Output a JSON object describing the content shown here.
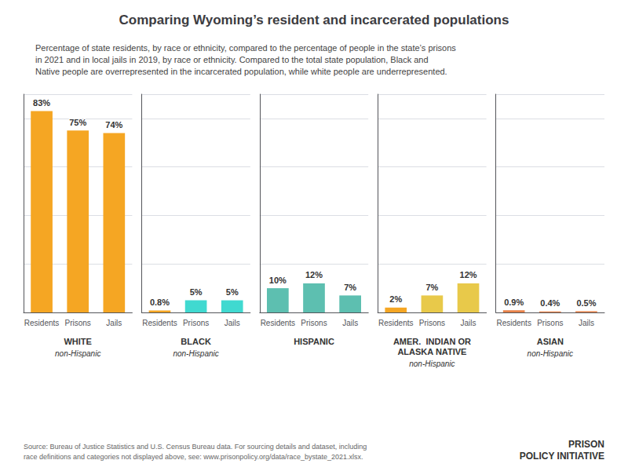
{
  "title": "Comparing Wyoming’s resident and incarcerated populations",
  "subtitle": "Percentage of state residents, by race or ethnicity, compared to the percentage of people in the state’s prisons\nin 2021 and in local jails in 2019, by race or ethnicity. Compared to the total state population, Black and\nNative people are overrepresented in the incarcerated population, while white people are underrepresented.",
  "annotations": [
    "Source: Bureau of Justice Statistics and U.S. Census Bureau data. For sourcing details and dataset, including\nrace definitions and categories not displayed above, see: www.prisonpolicy.org/data/race_bystate_2021.xlsx.",
    "PRISON\nPOLICY INITIATIVE"
  ],
  "chart_data": [
    {
      "type": "bar",
      "title": "WHITE",
      "subtitle": "non-Hispanic",
      "categories": [
        "Residents",
        "Prisons",
        "Jails"
      ],
      "values": [
        83,
        75,
        74
      ],
      "value_labels": [
        "83%",
        "75%",
        "74%"
      ],
      "colors": [
        "#F5A623",
        "#F5A623",
        "#F5A623"
      ],
      "ylim": [
        0,
        90
      ],
      "yticks": [
        0,
        20,
        40,
        60,
        80
      ],
      "grid": true,
      "data_labels": true,
      "tick_labels": "x"
    },
    {
      "type": "bar",
      "title": "BLACK",
      "subtitle": "non-Hispanic",
      "categories": [
        "Residents",
        "Prisons",
        "Jails"
      ],
      "values": [
        0.8,
        5,
        5
      ],
      "value_labels": [
        "0.8%",
        "5%",
        "5%"
      ],
      "colors": [
        "#F5A623",
        "#40D9D0",
        "#40D9D0"
      ],
      "ylim": [
        0,
        90
      ],
      "yticks": [
        0,
        20,
        40,
        60,
        80
      ],
      "grid": true,
      "data_labels": true,
      "tick_labels": "x"
    },
    {
      "type": "bar",
      "title": "HISPANIC",
      "categories": [
        "Residents",
        "Prisons",
        "Jails"
      ],
      "values": [
        10,
        12,
        7
      ],
      "value_labels": [
        "10%",
        "12%",
        "7%"
      ],
      "colors": [
        "#5DBFB0",
        "#5DBFB0",
        "#5DBFB0"
      ],
      "ylim": [
        0,
        90
      ],
      "yticks": [
        0,
        20,
        40,
        60,
        80
      ],
      "grid": true,
      "data_labels": true,
      "tick_labels": "x"
    },
    {
      "type": "bar",
      "title": "AMER.  INDIAN OR\nALASKA NATIVE",
      "subtitle": "non-Hispanic",
      "categories": [
        "Residents",
        "Prisons",
        "Jails"
      ],
      "values": [
        2,
        7,
        12
      ],
      "value_labels": [
        "2%",
        "7%",
        "12%"
      ],
      "colors": [
        "#F5A623",
        "#E8C94A",
        "#E8C94A"
      ],
      "ylim": [
        0,
        90
      ],
      "yticks": [
        0,
        20,
        40,
        60,
        80
      ],
      "grid": true,
      "data_labels": true,
      "tick_labels": "x"
    },
    {
      "type": "bar",
      "title": "ASIAN",
      "subtitle": "non-Hispanic",
      "categories": [
        "Residents",
        "Prisons",
        "Jails"
      ],
      "values": [
        0.9,
        0.4,
        0.5
      ],
      "value_labels": [
        "0.9%",
        "0.4%",
        "0.5%"
      ],
      "colors": [
        "#E8834A",
        "#E8834A",
        "#E8834A"
      ],
      "ylim": [
        0,
        90
      ],
      "yticks": [
        0,
        20,
        40,
        60,
        80
      ],
      "grid": true,
      "data_labels": true,
      "tick_labels": "x"
    }
  ]
}
